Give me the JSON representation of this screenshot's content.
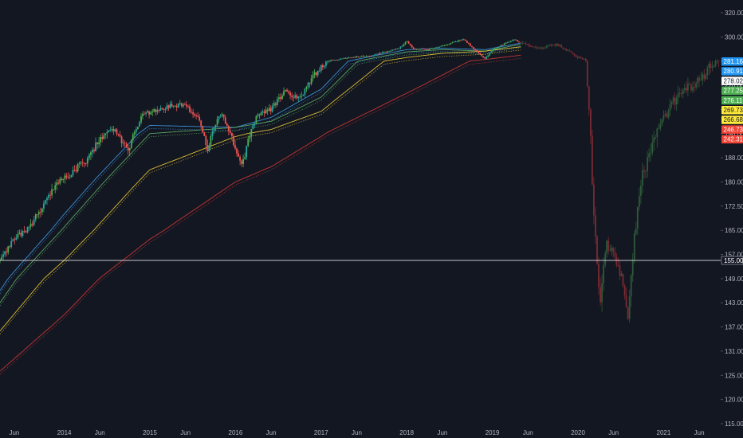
{
  "chart_data": {
    "type": "candlestick",
    "title": "",
    "colors": {
      "background": "#131722",
      "up": "#26a69a",
      "up_bright": "#4caf50",
      "down": "#ef5350",
      "projection_down": "#7a2a33",
      "projection_up": "#2e5a3a",
      "axis_text": "#b2b5be",
      "crosshair": "#ffffff"
    },
    "x_axis": {
      "range": [
        "2013-04",
        "2021-09"
      ],
      "tick_labels": [
        {
          "label": "Jun",
          "date": "2013-06"
        },
        {
          "label": "2014",
          "date": "2014-01"
        },
        {
          "label": "Jun",
          "date": "2014-06"
        },
        {
          "label": "2015",
          "date": "2015-01"
        },
        {
          "label": "Jun",
          "date": "2015-06"
        },
        {
          "label": "2016",
          "date": "2016-01"
        },
        {
          "label": "Jun",
          "date": "2016-06"
        },
        {
          "label": "2017",
          "date": "2017-01"
        },
        {
          "label": "Jun",
          "date": "2017-06"
        },
        {
          "label": "2018",
          "date": "2018-01"
        },
        {
          "label": "Jun",
          "date": "2018-06"
        },
        {
          "label": "2019",
          "date": "2019-01"
        },
        {
          "label": "Jun",
          "date": "2019-06"
        },
        {
          "label": "2020",
          "date": "2020-01"
        },
        {
          "label": "Jun",
          "date": "2020-06"
        },
        {
          "label": "2021",
          "date": "2021-01"
        },
        {
          "label": "Jun",
          "date": "2021-06"
        }
      ]
    },
    "y_axis": {
      "scale": "log",
      "range": [
        112,
        328
      ],
      "tick_labels": [
        "320.00",
        "300.00",
        "232.00",
        "220.00",
        "208.00",
        "196.00",
        "188.00",
        "180.00",
        "172.50",
        "165.00",
        "157.00",
        "149.00",
        "143.00",
        "137.00",
        "131.00",
        "125.00",
        "120.00",
        "115.00"
      ],
      "tick_values": [
        320,
        300,
        232,
        220,
        208,
        196,
        188,
        180,
        172.5,
        165,
        157,
        149,
        143,
        137,
        131,
        125,
        120,
        115
      ]
    },
    "crosshair": {
      "price": 155,
      "label": "155.00"
    },
    "price_badges": [
      {
        "label": "281.16",
        "bg": "#2196f3",
        "fg": "#ffffff"
      },
      {
        "label": "280.91",
        "bg": "#2196f3",
        "fg": "#ffffff"
      },
      {
        "label": "278.02",
        "bg": "#ffffff",
        "fg": "#131722"
      },
      {
        "label": "277.25",
        "bg": "#4caf50",
        "fg": "#ffffff"
      },
      {
        "label": "276.11",
        "bg": "#4caf50",
        "fg": "#ffffff"
      },
      {
        "label": "269.73",
        "bg": "#ffeb3b",
        "fg": "#131722"
      },
      {
        "label": "266.68",
        "bg": "#ffeb3b",
        "fg": "#131722"
      },
      {
        "label": "246.73",
        "bg": "#f44336",
        "fg": "#ffffff"
      },
      {
        "label": "242.31",
        "bg": "#f44336",
        "fg": "#ffffff"
      }
    ],
    "series": [
      {
        "name": "",
        "kind": "price",
        "points": [
          [
            "2013-04",
            155
          ],
          [
            "2013-06",
            162
          ],
          [
            "2013-08",
            166
          ],
          [
            "2013-10",
            172
          ],
          [
            "2013-12",
            180
          ],
          [
            "2014-02",
            183
          ],
          [
            "2014-04",
            187
          ],
          [
            "2014-06",
            194
          ],
          [
            "2014-08",
            198
          ],
          [
            "2014-10",
            190
          ],
          [
            "2014-12",
            205
          ],
          [
            "2015-02",
            208
          ],
          [
            "2015-04",
            210
          ],
          [
            "2015-06",
            210
          ],
          [
            "2015-08",
            202
          ],
          [
            "2015-09",
            190
          ],
          [
            "2015-11",
            207
          ],
          [
            "2016-01",
            190
          ],
          [
            "2016-02",
            186
          ],
          [
            "2016-04",
            205
          ],
          [
            "2016-06",
            208
          ],
          [
            "2016-08",
            217
          ],
          [
            "2016-10",
            213
          ],
          [
            "2016-12",
            225
          ],
          [
            "2017-02",
            233
          ],
          [
            "2017-04",
            238
          ],
          [
            "2017-06",
            243
          ],
          [
            "2017-08",
            246
          ],
          [
            "2017-10",
            256
          ],
          [
            "2017-12",
            267
          ],
          [
            "2018-01",
            286
          ],
          [
            "2018-02",
            263
          ],
          [
            "2018-04",
            263
          ],
          [
            "2018-06",
            272
          ],
          [
            "2018-08",
            287
          ],
          [
            "2018-09",
            292
          ],
          [
            "2018-10",
            272
          ],
          [
            "2018-12",
            237
          ],
          [
            "2019-01",
            262
          ],
          [
            "2019-03",
            281
          ],
          [
            "2019-04",
            292
          ],
          [
            "2019-05",
            283
          ]
        ]
      },
      {
        "name": "",
        "kind": "projection",
        "points": [
          [
            "2019-05",
            283
          ],
          [
            "2019-07",
            268
          ],
          [
            "2019-08",
            268
          ],
          [
            "2019-10",
            278
          ],
          [
            "2019-11",
            265
          ],
          [
            "2020-01",
            242
          ],
          [
            "2020-02",
            238
          ],
          [
            "2020-03",
            180
          ],
          [
            "2020-04",
            142
          ],
          [
            "2020-05",
            160
          ],
          [
            "2020-06",
            158
          ],
          [
            "2020-07",
            150
          ],
          [
            "2020-08",
            138
          ],
          [
            "2020-09",
            165
          ],
          [
            "2020-10",
            182
          ],
          [
            "2020-12",
            196
          ],
          [
            "2021-02",
            210
          ],
          [
            "2021-04",
            218
          ],
          [
            "2021-06",
            222
          ],
          [
            "2021-09",
            236
          ]
        ]
      },
      {
        "name": "",
        "kind": "moving-average",
        "color": "#42a5f5",
        "points": [
          [
            "2013-04",
            146
          ],
          [
            "2014-01",
            170
          ],
          [
            "2015-01",
            200
          ],
          [
            "2016-01",
            199
          ],
          [
            "2016-06",
            204
          ],
          [
            "2017-01",
            218
          ],
          [
            "2018-01",
            262
          ],
          [
            "2018-06",
            266
          ],
          [
            "2018-12",
            262
          ],
          [
            "2019-05",
            281
          ]
        ]
      },
      {
        "name": "",
        "kind": "moving-average",
        "color": "#66bb6a",
        "points": [
          [
            "2013-04",
            143
          ],
          [
            "2014-01",
            166
          ],
          [
            "2015-01",
            196
          ],
          [
            "2016-01",
            199
          ],
          [
            "2016-06",
            202
          ],
          [
            "2017-01",
            214
          ],
          [
            "2018-01",
            256
          ],
          [
            "2018-06",
            262
          ],
          [
            "2018-12",
            258
          ],
          [
            "2019-05",
            277
          ]
        ]
      },
      {
        "name": "",
        "kind": "moving-average",
        "color": "#fdd835",
        "points": [
          [
            "2013-04",
            136
          ],
          [
            "2014-01",
            155
          ],
          [
            "2015-01",
            184
          ],
          [
            "2016-01",
            195
          ],
          [
            "2016-06",
            198
          ],
          [
            "2017-01",
            207
          ],
          [
            "2018-01",
            241
          ],
          [
            "2018-06",
            252
          ],
          [
            "2018-12",
            258
          ],
          [
            "2019-05",
            270
          ]
        ]
      },
      {
        "name": "",
        "kind": "moving-average",
        "color": "#e53935",
        "points": [
          [
            "2013-04",
            126
          ],
          [
            "2014-01",
            140
          ],
          [
            "2015-01",
            162
          ],
          [
            "2016-01",
            180
          ],
          [
            "2016-06",
            185
          ],
          [
            "2017-01",
            195
          ],
          [
            "2018-01",
            216
          ],
          [
            "2018-06",
            225
          ],
          [
            "2018-12",
            236
          ],
          [
            "2019-05",
            247
          ]
        ]
      }
    ]
  }
}
